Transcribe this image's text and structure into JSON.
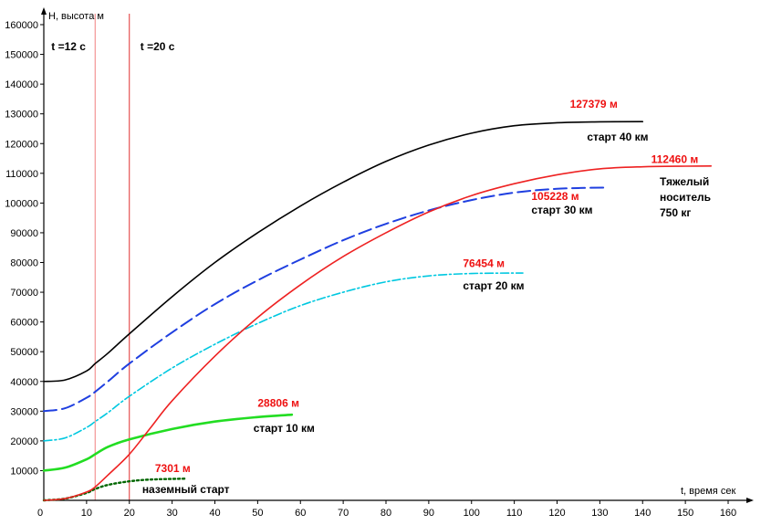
{
  "chart_data": {
    "type": "line",
    "xlabel": "t, время сек",
    "ylabel": "H, высота м",
    "xlim": [
      0,
      160
    ],
    "ylim": [
      0,
      160000
    ],
    "x_ticks": [
      "0",
      "10",
      "20",
      "30",
      "40",
      "50",
      "60",
      "70",
      "80",
      "90",
      "100",
      "110",
      "120",
      "130",
      "140",
      "150",
      "160"
    ],
    "y_ticks": [
      "10000",
      "20000",
      "30000",
      "40000",
      "50000",
      "60000",
      "70000",
      "80000",
      "90000",
      "100000",
      "110000",
      "120000",
      "130000",
      "140000",
      "150000",
      "160000"
    ],
    "vertical_lines": [
      {
        "x": 12,
        "label": "t =12 с",
        "color": "#f08080"
      },
      {
        "x": 20,
        "label": "t =20 с",
        "color": "#e03030"
      }
    ],
    "series": [
      {
        "color": "#000000",
        "style": "solid",
        "x": [
          0,
          5,
          10,
          12,
          15,
          20,
          30,
          40,
          50,
          60,
          70,
          80,
          90,
          100,
          110,
          120,
          130,
          140
        ],
        "y": [
          40000,
          40500,
          43500,
          46000,
          49500,
          56000,
          68500,
          80000,
          90000,
          99000,
          107000,
          114000,
          119500,
          123500,
          126000,
          127000,
          127300,
          127379
        ]
      },
      {
        "color": "#1f3fe0",
        "style": "dashed",
        "x": [
          0,
          5,
          10,
          12,
          15,
          20,
          30,
          40,
          50,
          60,
          70,
          80,
          90,
          100,
          110,
          120,
          132
        ],
        "y": [
          30000,
          31000,
          34500,
          36500,
          40000,
          46000,
          56500,
          66000,
          74000,
          81000,
          87500,
          93000,
          97500,
          101000,
          103500,
          104800,
          105228
        ]
      },
      {
        "color": "#00c8e0",
        "style": "dashdot",
        "x": [
          0,
          5,
          10,
          12,
          15,
          20,
          30,
          40,
          50,
          60,
          70,
          80,
          90,
          100,
          112
        ],
        "y": [
          20000,
          21000,
          24500,
          26500,
          29500,
          35000,
          44500,
          52500,
          59500,
          65500,
          70000,
          73500,
          75500,
          76300,
          76454
        ]
      },
      {
        "color": "#22dd22",
        "style": "solid",
        "x": [
          0,
          5,
          10,
          12,
          15,
          20,
          30,
          40,
          50,
          58
        ],
        "y": [
          10000,
          11000,
          13800,
          15500,
          18000,
          20500,
          24000,
          26500,
          28000,
          28806
        ]
      },
      {
        "color": "#006600",
        "style": "dotted",
        "x": [
          0,
          5,
          10,
          12,
          15,
          20,
          25,
          33
        ],
        "y": [
          0,
          600,
          2500,
          3800,
          5200,
          6400,
          7000,
          7301
        ]
      },
      {
        "color": "#ee2222",
        "style": "solid",
        "x": [
          0,
          5,
          10,
          12,
          15,
          20,
          25,
          30,
          40,
          50,
          60,
          70,
          80,
          90,
          100,
          110,
          120,
          130,
          140,
          150,
          156
        ],
        "y": [
          0,
          600,
          2800,
          4500,
          8500,
          15500,
          24500,
          33500,
          48500,
          61500,
          72500,
          82000,
          90000,
          97000,
          102500,
          106500,
          109500,
          111500,
          112200,
          112400,
          112460
        ]
      }
    ],
    "annotations": [
      {
        "value": "127379 м",
        "label_lines": [
          "старт 40 км"
        ],
        "value_xy": [
          123,
          132000
        ],
        "label_xy": [
          127,
          121000
        ]
      },
      {
        "value": "105228  м",
        "label_lines": [
          "старт 30 км"
        ],
        "value_xy": [
          114,
          101000
        ],
        "label_xy": [
          114,
          96500
        ]
      },
      {
        "value": "76454 м",
        "label_lines": [
          "старт 20 км"
        ],
        "value_xy": [
          98,
          78500
        ],
        "label_xy": [
          98,
          71000
        ]
      },
      {
        "value": "28806 м",
        "label_lines": [
          "старт 10 км"
        ],
        "value_xy": [
          50,
          31500
        ],
        "label_xy": [
          49,
          23000
        ]
      },
      {
        "value": "7301 м",
        "label_lines": [
          "наземный старт"
        ],
        "value_xy": [
          26,
          9500
        ],
        "label_xy": [
          23,
          2500
        ]
      },
      {
        "value": "112460 м",
        "label_lines": [
          "Тяжелый",
          "носитель",
          "750 кг"
        ],
        "value_xy": [
          142,
          113500
        ],
        "label_xy": [
          144,
          106000
        ]
      }
    ]
  }
}
